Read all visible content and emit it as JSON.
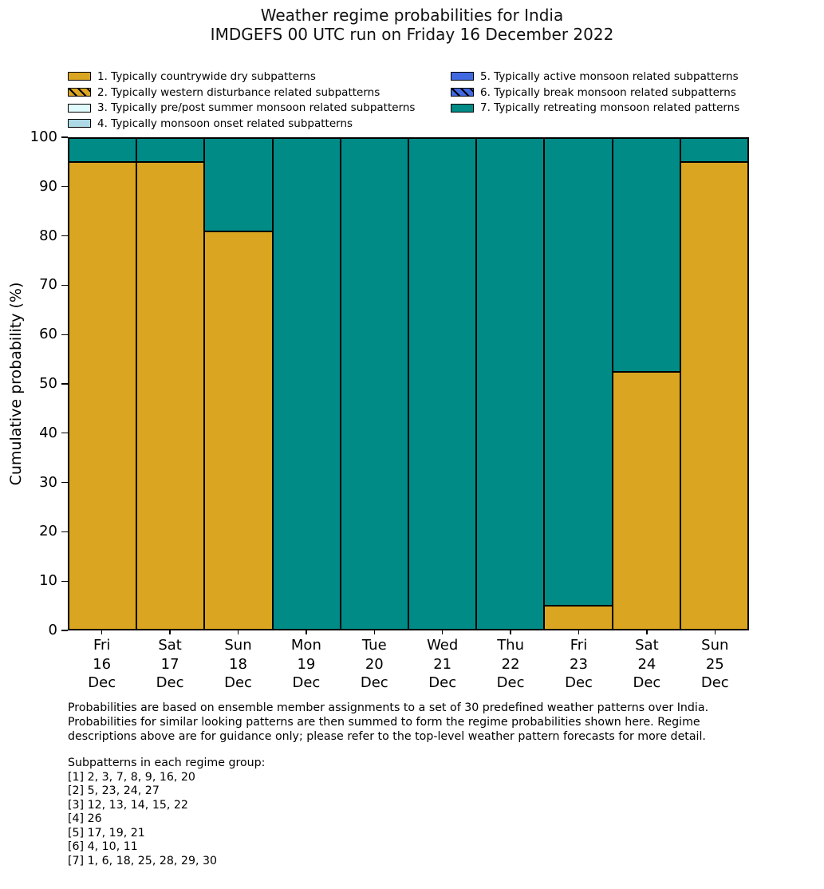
{
  "title": {
    "line1": "Weather regime probabilities for India",
    "line2": "IMDGEFS 00 UTC run on Friday 16 December 2022"
  },
  "legend": {
    "items": [
      {
        "label": "1. Typically countrywide dry subpatterns",
        "color": "#DAA520",
        "hatch": false
      },
      {
        "label": "2. Typically western disturbance related subpatterns",
        "color": "#DAA520",
        "hatch": true
      },
      {
        "label": "3. Typically pre/post summer monsoon related subpatterns",
        "color": "#E0FBFB",
        "hatch": false
      },
      {
        "label": "4. Typically monsoon onset related subpatterns",
        "color": "#ADD8E6",
        "hatch": false
      },
      {
        "label": "5. Typically active monsoon related subpatterns",
        "color": "#4169E1",
        "hatch": false
      },
      {
        "label": "6. Typically break monsoon related subpatterns",
        "color": "#4169E1",
        "hatch": true
      },
      {
        "label": "7. Typically retreating monsoon related patterns",
        "color": "#018B87",
        "hatch": false
      }
    ]
  },
  "chart_data": {
    "type": "bar",
    "stacked": true,
    "title": "Weather regime probabilities for India — IMDGEFS 00 UTC run on Friday 16 December 2022",
    "xlabel": "",
    "ylabel": "Cumulative probability (%)",
    "ylim": [
      0,
      100
    ],
    "yticks": [
      0,
      10,
      20,
      30,
      40,
      50,
      60,
      70,
      80,
      90,
      100
    ],
    "grid": false,
    "legend_position": "top",
    "categories": [
      {
        "day": "Fri",
        "date": "16",
        "month": "Dec"
      },
      {
        "day": "Sat",
        "date": "17",
        "month": "Dec"
      },
      {
        "day": "Sun",
        "date": "18",
        "month": "Dec"
      },
      {
        "day": "Mon",
        "date": "19",
        "month": "Dec"
      },
      {
        "day": "Tue",
        "date": "20",
        "month": "Dec"
      },
      {
        "day": "Wed",
        "date": "21",
        "month": "Dec"
      },
      {
        "day": "Thu",
        "date": "22",
        "month": "Dec"
      },
      {
        "day": "Fri",
        "date": "23",
        "month": "Dec"
      },
      {
        "day": "Sat",
        "date": "24",
        "month": "Dec"
      },
      {
        "day": "Sun",
        "date": "25",
        "month": "Dec"
      }
    ],
    "series": [
      {
        "name": "1. Typically countrywide dry subpatterns",
        "color": "#DAA520",
        "values": [
          95.2,
          95.2,
          81.0,
          0,
          0,
          0,
          0,
          4.8,
          52.4,
          95.2
        ]
      },
      {
        "name": "7. Typically retreating monsoon related patterns",
        "color": "#018B87",
        "values": [
          4.8,
          4.8,
          19.0,
          100,
          100,
          100,
          100,
          95.2,
          47.6,
          4.8
        ]
      }
    ]
  },
  "footer": {
    "lines": [
      "Probabilities are based on ensemble member assignments to a set of 30 predefined weather patterns over India.",
      "Probabilities for similar looking patterns are then summed to form the regime probabilities shown here. Regime",
      "descriptions above are for guidance only; please refer to the top-level weather pattern forecasts for more detail."
    ]
  },
  "subpatterns": {
    "heading": "Subpatterns in each regime group:",
    "lines": [
      "[1] 2, 3, 7, 8, 9, 16, 20",
      "[2] 5, 23, 24, 27",
      "[3] 12, 13, 14, 15, 22",
      "[4] 26",
      "[5] 17, 19, 21",
      "[6] 4, 10, 11",
      "[7] 1, 6, 18, 25, 28, 29, 30"
    ]
  }
}
